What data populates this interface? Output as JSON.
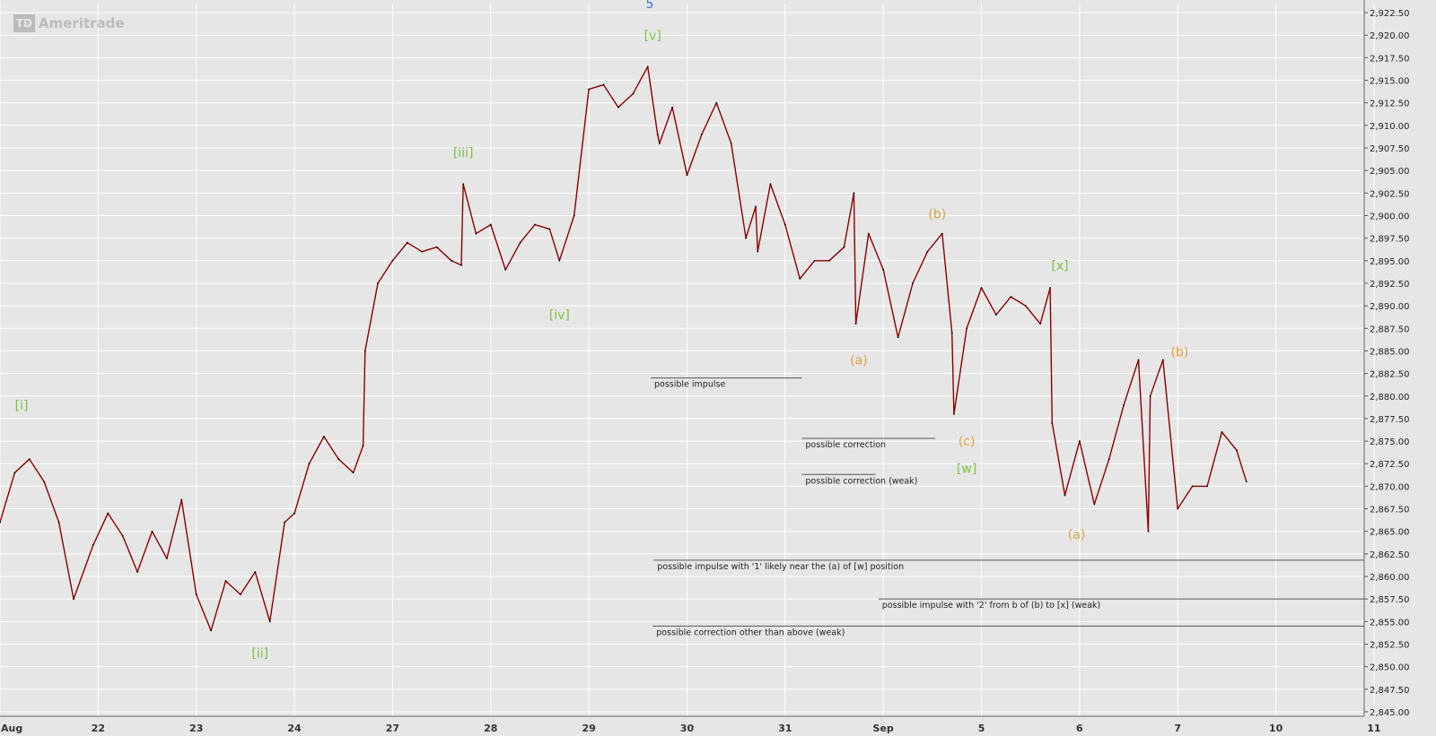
{
  "chart_data": {
    "type": "line",
    "logo": "Ameritrade",
    "logo_badge": "TD",
    "colors": {
      "background": "#e6e6e6",
      "grid": "#ffffff",
      "price": "#8b0000",
      "wave_green": "#7dc142",
      "wave_orange": "#e0a040",
      "wave_blue": "#3a6fe0",
      "annotation_line": "#555555"
    },
    "x_ticks": [
      "Aug",
      "22",
      "23",
      "24",
      "27",
      "28",
      "29",
      "30",
      "31",
      "Sep",
      "5",
      "6",
      "7",
      "10",
      "11"
    ],
    "y_ticks": [
      "2,922.50",
      "2,920.00",
      "2,917.50",
      "2,915.00",
      "2,912.50",
      "2,910.00",
      "2,907.50",
      "2,905.00",
      "2,902.50",
      "2,900.00",
      "2,897.50",
      "2,895.00",
      "2,892.50",
      "2,890.00",
      "2,887.50",
      "2,885.00",
      "2,882.50",
      "2,880.00",
      "2,877.50",
      "2,875.00",
      "2,872.50",
      "2,870.00",
      "2,867.50",
      "2,865.00",
      "2,862.50",
      "2,860.00",
      "2,857.50",
      "2,855.00",
      "2,852.50",
      "2,850.00",
      "2,847.50",
      "2,845.00"
    ],
    "ylim": [
      2844.5,
      2923.5
    ],
    "xlim": [
      0,
      13.9
    ],
    "grid": true,
    "series": [
      {
        "x": [
          0.0,
          0.15,
          0.3,
          0.45,
          0.6,
          0.75,
          0.95,
          1.1,
          1.25,
          1.4,
          1.55,
          1.7,
          1.85,
          2.0,
          2.15,
          2.3,
          2.45,
          2.6,
          2.75,
          2.9,
          3.0,
          3.15,
          3.3,
          3.45,
          3.6,
          3.7,
          3.72,
          3.85,
          4.0,
          4.15,
          4.3,
          4.45,
          4.6,
          4.7,
          4.72,
          4.85,
          5.0,
          5.15,
          5.3,
          5.45,
          5.6,
          5.7,
          5.85,
          6.0,
          6.15,
          6.3,
          6.45,
          6.6,
          6.7,
          6.72,
          6.85,
          7.0,
          7.15,
          7.3,
          7.45,
          7.6,
          7.7,
          7.72,
          7.85,
          8.0,
          8.15,
          8.3,
          8.45,
          8.6,
          8.7,
          8.72,
          8.85,
          9.0,
          9.15,
          9.3,
          9.45,
          9.6,
          9.7,
          9.72,
          9.85,
          10.0,
          10.15,
          10.3,
          10.45,
          10.6,
          10.7,
          10.72,
          10.85,
          11.0,
          11.15,
          11.3,
          11.45,
          11.6,
          11.7,
          11.72,
          11.85,
          12.0,
          12.15,
          12.3,
          12.45,
          12.6,
          12.7
        ],
        "values": [
          2866.0,
          2871.5,
          2873.0,
          2870.5,
          2866.0,
          2857.5,
          2863.5,
          2867.0,
          2864.5,
          2860.5,
          2865.0,
          2862.0,
          2868.5,
          2858.0,
          2854.0,
          2859.5,
          2858.0,
          2860.5,
          2855.0,
          2866.0,
          2867.0,
          2872.5,
          2875.5,
          2873.0,
          2871.5,
          2874.5,
          2885.0,
          2892.5,
          2895.0,
          2897.0,
          2896.0,
          2896.5,
          2895.0,
          2894.5,
          2903.5,
          2898.0,
          2899.0,
          2894.0,
          2897.0,
          2899.0,
          2898.5,
          2895.0,
          2900.0,
          2914.0,
          2914.5,
          2912.0,
          2913.5,
          2916.5,
          2909.0,
          2908.0,
          2912.0,
          2904.5,
          2909.0,
          2912.5,
          2908.0,
          2897.5,
          2901.0,
          2896.0,
          2903.5,
          2899.0,
          2893.0,
          2895.0,
          2895.0,
          2896.5,
          2902.5,
          2888.0,
          2898.0,
          2894.0,
          2886.5,
          2892.5,
          2896.0,
          2898.0,
          2887.0,
          2878.0,
          2887.5,
          2892.0,
          2889.0,
          2891.0,
          2890.0,
          2888.0,
          2892.0,
          2877.0,
          2869.0,
          2875.0,
          2868.0,
          2873.0,
          2879.0,
          2884.0,
          2865.0,
          2880.0,
          2884.0,
          2867.5,
          2870.0,
          2870.0,
          2876.0,
          2874.0,
          2870.5
        ]
      }
    ],
    "wave_labels": [
      {
        "text": "[i]",
        "x": 0.22,
        "y": 2878.5,
        "color": "green"
      },
      {
        "text": "[ii]",
        "x": 2.65,
        "y": 2851.0,
        "color": "green"
      },
      {
        "text": "[iii]",
        "x": 4.72,
        "y": 2906.5,
        "color": "green"
      },
      {
        "text": "[iv]",
        "x": 5.7,
        "y": 2888.5,
        "color": "green"
      },
      {
        "text": "[v]",
        "x": 6.65,
        "y": 2919.5,
        "color": "green"
      },
      {
        "text": "5",
        "x": 6.62,
        "y": 2923.0,
        "color": "blue"
      },
      {
        "text": "(a)",
        "x": 8.75,
        "y": 2883.5,
        "color": "orange"
      },
      {
        "text": "(b)",
        "x": 9.55,
        "y": 2899.7,
        "color": "orange"
      },
      {
        "text": "(c)",
        "x": 9.85,
        "y": 2874.5,
        "color": "orange"
      },
      {
        "text": "[w]",
        "x": 9.85,
        "y": 2871.5,
        "color": "green"
      },
      {
        "text": "[x]",
        "x": 10.8,
        "y": 2894.0,
        "color": "green"
      },
      {
        "text": "(a)",
        "x": 10.97,
        "y": 2864.2,
        "color": "orange"
      },
      {
        "text": "(b)",
        "x": 12.02,
        "y": 2884.4,
        "color": "orange"
      }
    ],
    "annotations": [
      {
        "text": "possible impulse",
        "y": 2882.0,
        "x_start": 6.63,
        "x_end": 8.17
      },
      {
        "text": "possible correction",
        "y": 2875.3,
        "x_start": 8.17,
        "x_end": 9.53
      },
      {
        "text": "possible correction (weak)",
        "y": 2871.3,
        "x_start": 8.17,
        "x_end": 8.92
      },
      {
        "text": "possible impulse with '1' likely near the (a) of [w] position",
        "y": 2861.8,
        "x_start": 6.66,
        "x_end": 13.9
      },
      {
        "text": "possible impulse with '2' from b of (b) to [x] (weak)",
        "y": 2857.5,
        "x_start": 8.95,
        "x_end": 13.9
      },
      {
        "text": "possible correction other than above (weak)",
        "y": 2854.5,
        "x_start": 6.65,
        "x_end": 13.9
      }
    ]
  }
}
